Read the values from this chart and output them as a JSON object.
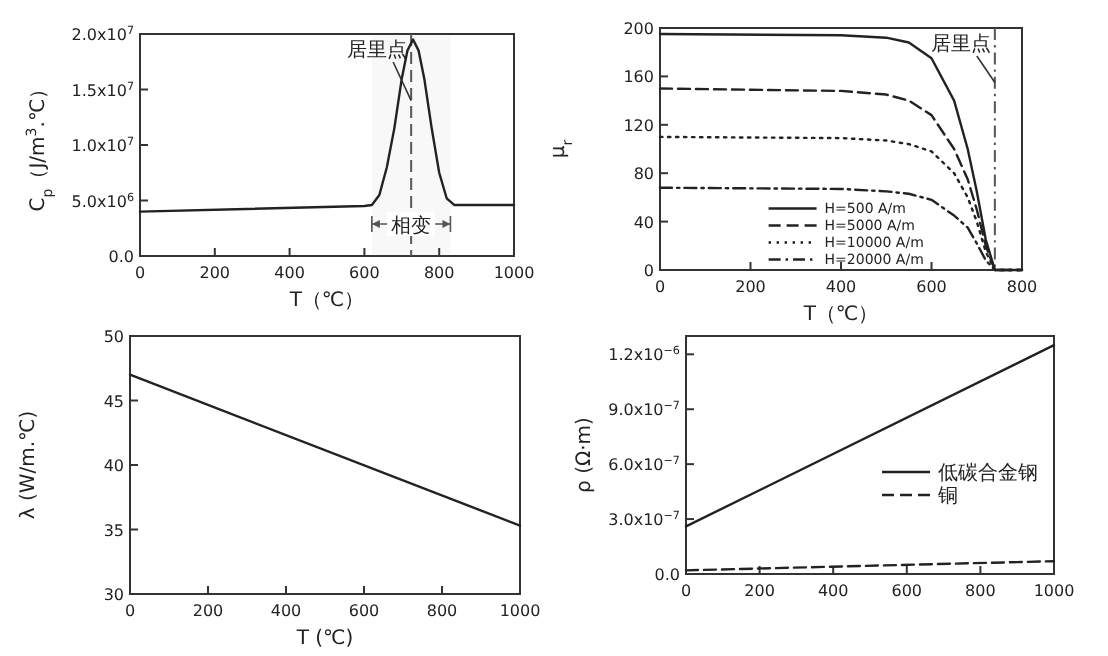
{
  "chart_data": [
    {
      "type": "line",
      "xlabel": "T（℃）",
      "ylabel": "C$_{p}$（J/m$^{3}$.℃）",
      "xlim": [
        0,
        1000
      ],
      "ylim": [
        0,
        20000000
      ],
      "xticks": [
        0,
        200,
        400,
        600,
        800,
        1000
      ],
      "yticks": [
        {
          "value": 0,
          "label": "0.0"
        },
        {
          "value": 5000000,
          "label": "5.0x10$^{6}$"
        },
        {
          "value": 10000000,
          "label": "1.0x10$^{7}$"
        },
        {
          "value": 15000000,
          "label": "1.5x10$^{7}$"
        },
        {
          "value": 20000000,
          "label": "2.0x10$^{7}$"
        }
      ],
      "x": [
        0,
        600,
        620,
        640,
        660,
        680,
        700,
        715,
        730,
        745,
        760,
        780,
        800,
        820,
        840,
        1000
      ],
      "series": [
        {
          "color": "#222222",
          "values": [
            4000000,
            4500000,
            4600000,
            5500000,
            8000000,
            11500000,
            16000000,
            18500000,
            19500000,
            18500000,
            16000000,
            11500000,
            7500000,
            5200000,
            4600000,
            4600000
          ]
        }
      ],
      "ref_lines": [
        {
          "axis": "x",
          "value": 725,
          "line_style": "dashed"
        }
      ],
      "bands": [
        {
          "axis": "x",
          "from": 620,
          "to": 830,
          "label": "相变"
        }
      ],
      "annotations": [
        {
          "text": "居里点",
          "x": 725,
          "y": 14000000
        }
      ],
      "grid": false,
      "legend": false
    },
    {
      "type": "line",
      "xlabel": "T（℃）",
      "ylabel": "μ$_{r}$",
      "xlim": [
        0,
        800
      ],
      "ylim": [
        0,
        200
      ],
      "xticks": [
        0,
        200,
        400,
        600,
        800
      ],
      "yticks": [
        0,
        40,
        80,
        120,
        160,
        200
      ],
      "x": [
        0,
        400,
        500,
        550,
        600,
        650,
        680,
        700,
        720,
        740,
        800
      ],
      "series": [
        {
          "name": "H=500 A/m",
          "color": "#222222",
          "line_style": "solid",
          "values": [
            195,
            194,
            192,
            188,
            175,
            140,
            100,
            65,
            25,
            0,
            0
          ]
        },
        {
          "name": "H=5000 A/m",
          "color": "#222222",
          "line_style": "dashed",
          "values": [
            150,
            148,
            145,
            140,
            128,
            100,
            75,
            50,
            20,
            0,
            0
          ]
        },
        {
          "name": "H=10000 A/m",
          "color": "#222222",
          "line_style": "dotted",
          "values": [
            110,
            109,
            107,
            104,
            98,
            80,
            60,
            40,
            15,
            0,
            0
          ]
        },
        {
          "name": "H=20000 A/m",
          "color": "#222222",
          "line_style": "dashdot",
          "values": [
            68,
            67,
            65,
            63,
            58,
            45,
            35,
            22,
            8,
            0,
            0
          ]
        }
      ],
      "ref_lines": [
        {
          "axis": "x",
          "value": 740,
          "line_style": "dashdot"
        }
      ],
      "annotations": [
        {
          "text": "居里点",
          "x": 740,
          "y": 155
        }
      ],
      "grid": false,
      "legend": "bottom left"
    },
    {
      "type": "line",
      "xlabel": "T (℃)",
      "ylabel": "λ (W/m.℃)",
      "xlim": [
        0,
        1000
      ],
      "ylim": [
        30,
        50
      ],
      "xticks": [
        0,
        200,
        400,
        600,
        800,
        1000
      ],
      "yticks": [
        30,
        35,
        40,
        45,
        50
      ],
      "x": [
        0,
        1000
      ],
      "series": [
        {
          "color": "#222222",
          "values": [
            47,
            35.3
          ]
        }
      ],
      "grid": false,
      "legend": false
    },
    {
      "type": "line",
      "ylabel": "ρ (Ω·m)",
      "xlim": [
        0,
        1000
      ],
      "ylim": [
        0,
        1.3e-06
      ],
      "xticks": [
        0,
        200,
        400,
        600,
        800,
        1000
      ],
      "yticks": [
        {
          "value": 0,
          "label": "0.0"
        },
        {
          "value": 3e-07,
          "label": "3.0x10$^{−7}$"
        },
        {
          "value": 6e-07,
          "label": "6.0x10$^{−7}$"
        },
        {
          "value": 9e-07,
          "label": "9.0x10$^{−7}$"
        },
        {
          "value": 1.2e-06,
          "label": "1.2x10$^{−6}$"
        }
      ],
      "x": [
        0,
        1000
      ],
      "series": [
        {
          "name": "低碳合金钢",
          "color": "#222222",
          "line_style": "solid",
          "values": [
            2.6e-07,
            1.25e-06
          ]
        },
        {
          "name": "铜",
          "color": "#222222",
          "line_style": "dashed",
          "values": [
            2e-08,
            7e-08
          ]
        }
      ],
      "grid": false,
      "legend": "right"
    }
  ]
}
